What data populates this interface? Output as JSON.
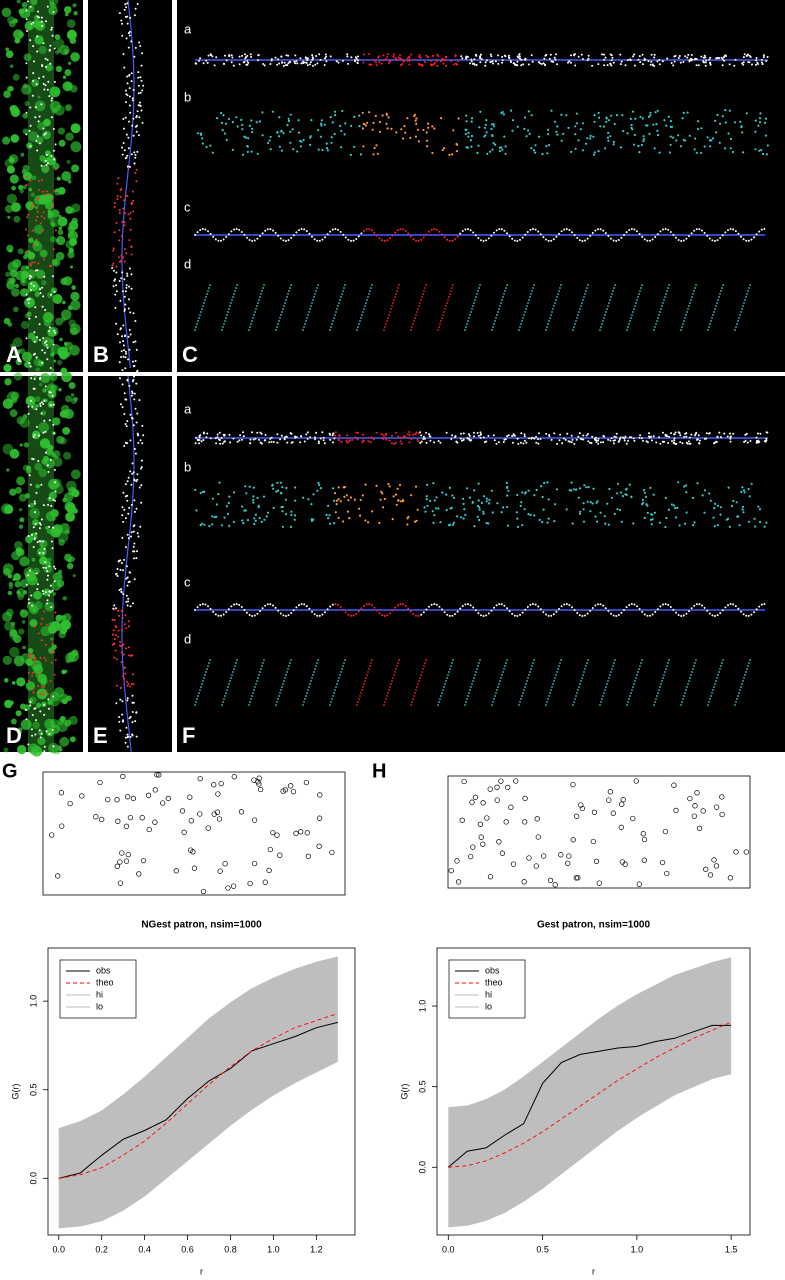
{
  "image_panels": {
    "labels": [
      "A",
      "B",
      "C",
      "D",
      "E",
      "F"
    ],
    "row_labels": [
      "a",
      "b",
      "c",
      "d"
    ]
  },
  "chart_data": [
    {
      "type": "line",
      "panel_label": "G",
      "title": "NGest patron, nsim=1000",
      "xlabel": "r",
      "ylabel": "G(r)",
      "xlim": [
        -0.05,
        1.38
      ],
      "ylim": [
        -0.32,
        1.3
      ],
      "xticks": [
        {
          "value": 0,
          "label": "0.0"
        },
        {
          "value": 0.2,
          "label": "0.2"
        },
        {
          "value": 0.4,
          "label": "0.4"
        },
        {
          "value": 0.6,
          "label": "0.6"
        },
        {
          "value": 0.8,
          "label": "0.8"
        },
        {
          "value": 1,
          "label": "1.0"
        },
        {
          "value": 1.2,
          "label": "1.2"
        }
      ],
      "yticks": [
        {
          "value": 0,
          "label": "0.0"
        },
        {
          "value": 0.5,
          "label": "0.5"
        },
        {
          "value": 1,
          "label": "1.0"
        }
      ],
      "legend": "top-left",
      "x": [
        0,
        0.1,
        0.2,
        0.3,
        0.4,
        0.5,
        0.6,
        0.7,
        0.8,
        0.9,
        1.0,
        1.1,
        1.2,
        1.3
      ],
      "series": [
        {
          "name": "obs",
          "color": "#000000",
          "dash": false,
          "values": [
            0,
            0.03,
            0.13,
            0.22,
            0.27,
            0.33,
            0.45,
            0.55,
            0.62,
            0.72,
            0.76,
            0.8,
            0.85,
            0.88
          ]
        },
        {
          "name": "theo",
          "color": "#ff0000",
          "dash": true,
          "values": [
            0,
            0.02,
            0.06,
            0.13,
            0.21,
            0.31,
            0.42,
            0.53,
            0.63,
            0.72,
            0.79,
            0.85,
            0.89,
            0.93
          ]
        },
        {
          "name": "hi",
          "color": "#bebebe",
          "dash": false,
          "values": [
            0.28,
            0.32,
            0.38,
            0.47,
            0.57,
            0.68,
            0.79,
            0.9,
            0.99,
            1.07,
            1.13,
            1.18,
            1.22,
            1.25
          ]
        },
        {
          "name": "lo",
          "color": "#bebebe",
          "dash": false,
          "values": [
            -0.28,
            -0.27,
            -0.24,
            -0.18,
            -0.1,
            0,
            0.1,
            0.2,
            0.3,
            0.39,
            0.47,
            0.54,
            0.6,
            0.66
          ]
        }
      ]
    },
    {
      "type": "line",
      "panel_label": "H",
      "title": "Gest patron, nsim=1000",
      "xlabel": "r",
      "ylabel": "G(r)",
      "xlim": [
        -0.06,
        1.6
      ],
      "ylim": [
        -0.42,
        1.36
      ],
      "xticks": [
        {
          "value": 0,
          "label": "0.0"
        },
        {
          "value": 0.5,
          "label": "0.5"
        },
        {
          "value": 1,
          "label": "1.0"
        },
        {
          "value": 1.5,
          "label": "1.5"
        }
      ],
      "yticks": [
        {
          "value": 0,
          "label": "0.0"
        },
        {
          "value": 0.5,
          "label": "0.5"
        },
        {
          "value": 1,
          "label": "1.0"
        }
      ],
      "legend": "top-left",
      "x": [
        0,
        0.1,
        0.2,
        0.3,
        0.4,
        0.5,
        0.6,
        0.7,
        0.8,
        0.9,
        1.0,
        1.1,
        1.2,
        1.3,
        1.4,
        1.5
      ],
      "series": [
        {
          "name": "obs",
          "color": "#000000",
          "dash": false,
          "values": [
            0,
            0.1,
            0.12,
            0.2,
            0.27,
            0.52,
            0.65,
            0.7,
            0.72,
            0.74,
            0.75,
            0.78,
            0.8,
            0.84,
            0.88,
            0.88
          ]
        },
        {
          "name": "theo",
          "color": "#ff0000",
          "dash": true,
          "values": [
            0,
            0.01,
            0.04,
            0.09,
            0.15,
            0.22,
            0.3,
            0.38,
            0.46,
            0.54,
            0.61,
            0.68,
            0.74,
            0.8,
            0.85,
            0.9
          ]
        },
        {
          "name": "hi",
          "color": "#bebebe",
          "dash": false,
          "values": [
            0.37,
            0.38,
            0.42,
            0.48,
            0.56,
            0.65,
            0.74,
            0.83,
            0.92,
            1.0,
            1.07,
            1.13,
            1.19,
            1.23,
            1.27,
            1.3
          ]
        },
        {
          "name": "lo",
          "color": "#bebebe",
          "dash": false,
          "values": [
            -0.37,
            -0.36,
            -0.33,
            -0.28,
            -0.21,
            -0.13,
            -0.04,
            0.05,
            0.14,
            0.23,
            0.31,
            0.38,
            0.45,
            0.5,
            0.55,
            0.58
          ]
        }
      ]
    }
  ]
}
